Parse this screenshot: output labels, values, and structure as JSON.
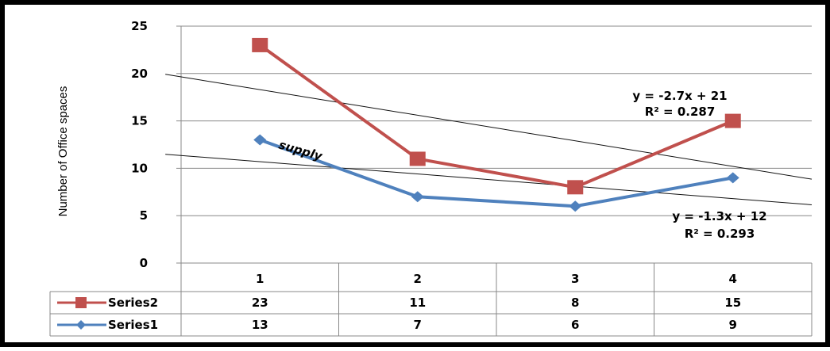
{
  "chart_data": {
    "type": "line",
    "ylabel": "Number of Office spaces",
    "ylim": [
      0,
      25
    ],
    "yticks": [
      "0",
      "5",
      "10",
      "15",
      "20",
      "25"
    ],
    "categories": [
      "1",
      "2",
      "3",
      "4"
    ],
    "grid": true,
    "legend": "data-table",
    "series": [
      {
        "name": "Series2",
        "values": [
          23,
          11,
          8,
          15
        ],
        "color": "#C0504D",
        "marker": "square"
      },
      {
        "name": "Series1",
        "values": [
          13,
          7,
          6,
          9
        ],
        "color": "#4F81BD",
        "marker": "diamond"
      }
    ],
    "trendlines": [
      {
        "series": "Series2",
        "slope": -2.7,
        "intercept": 21,
        "equation": "y = -2.7x + 21",
        "r2": "R² = 0.287"
      },
      {
        "series": "Series1",
        "slope": -1.3,
        "intercept": 12,
        "equation": "y = -1.3x + 12",
        "r2": "R² = 0.293"
      }
    ],
    "annotation": "supply",
    "data_table": [
      {
        "series": "Series2",
        "cells": [
          "23",
          "11",
          "8",
          "15"
        ]
      },
      {
        "series": "Series1",
        "cells": [
          "13",
          "7",
          "6",
          "9"
        ]
      }
    ]
  }
}
